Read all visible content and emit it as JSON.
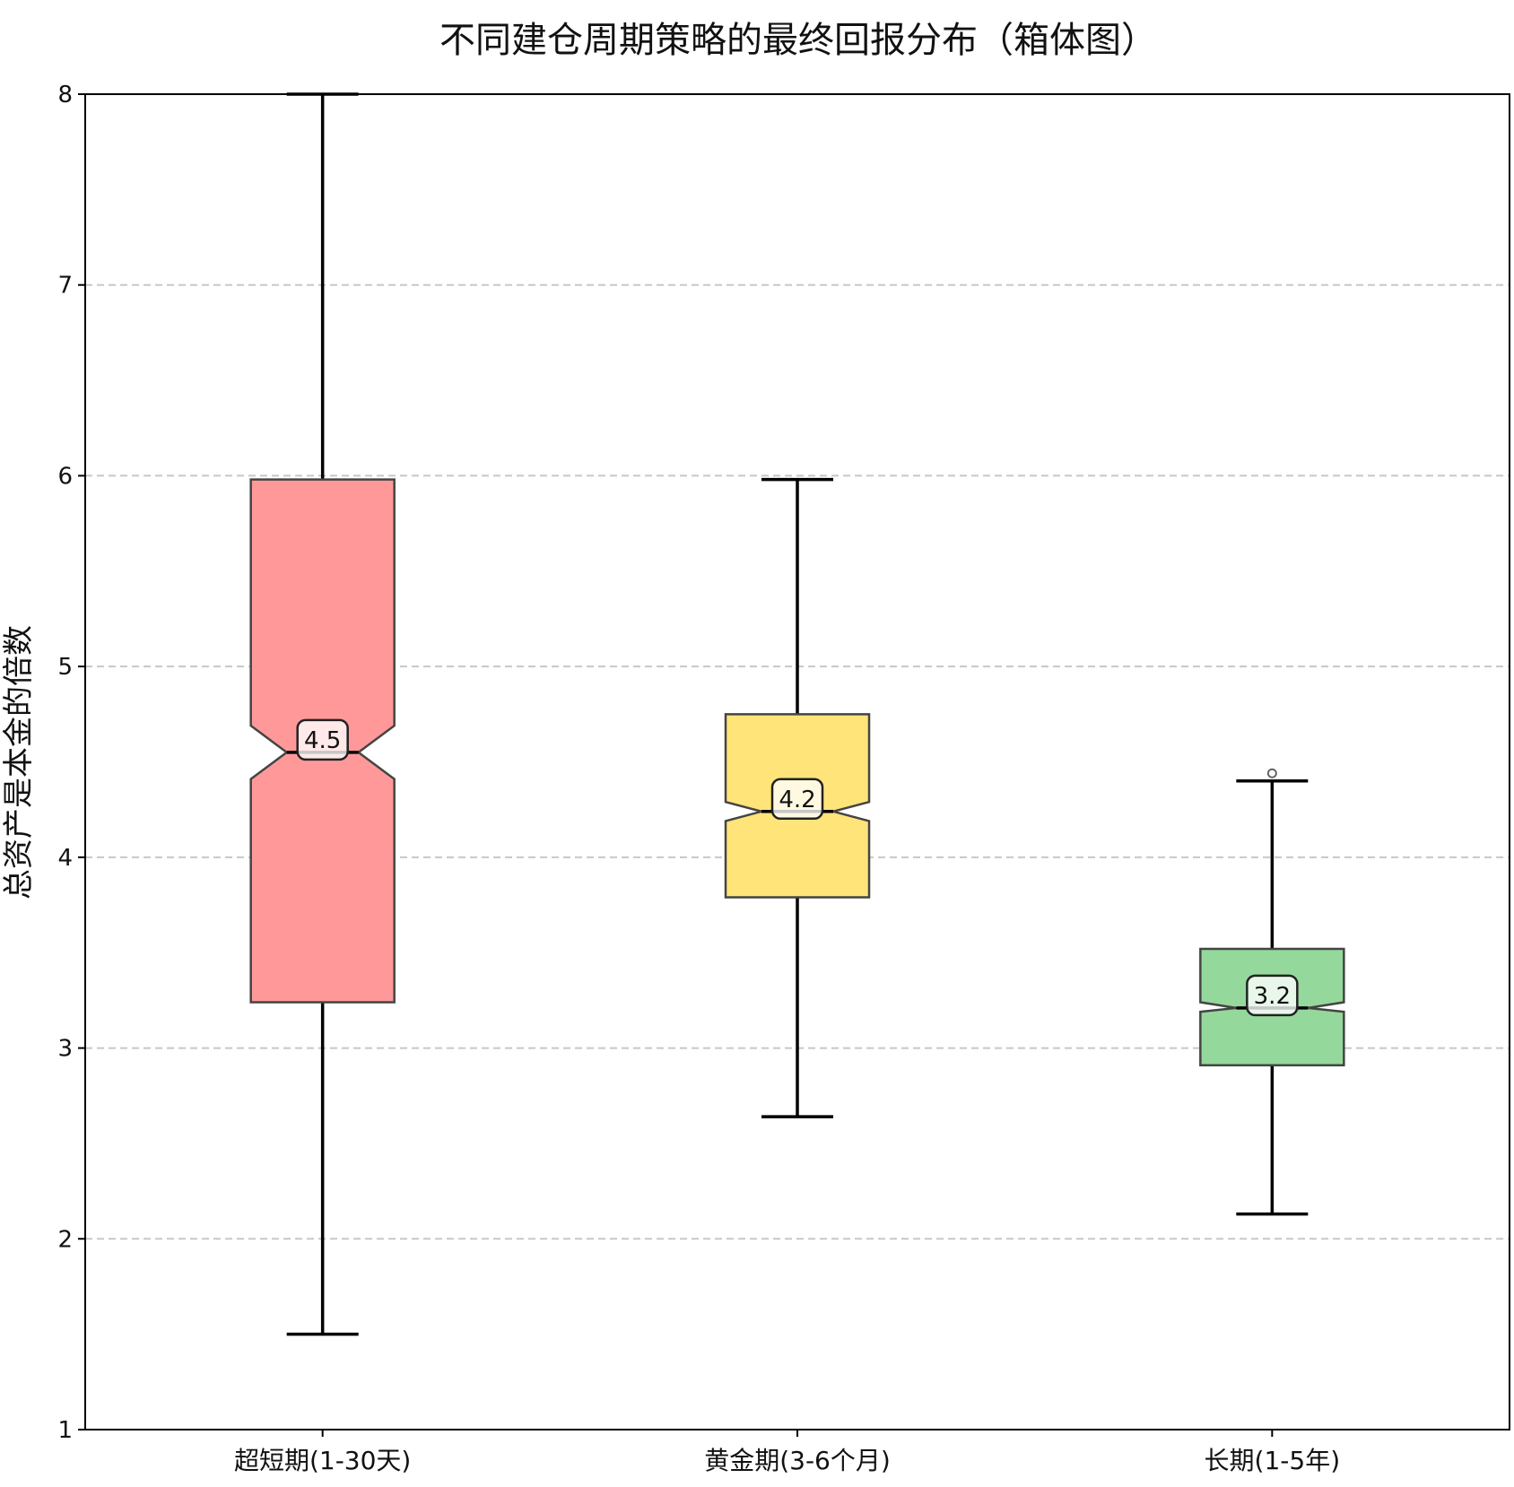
{
  "chart_data": {
    "type": "box",
    "title": "不同建仓周期策略的最终回报分布（箱体图）",
    "xlabel": "",
    "ylabel": "总资产是本金的倍数",
    "ylim": [
      1,
      8
    ],
    "yticks": [
      "1",
      "2",
      "3",
      "4",
      "5",
      "6",
      "7",
      "8"
    ],
    "grid": "horizontal-dashed",
    "notched": true,
    "categories": [
      "超短期(1-30天)",
      "黄金期(3-6个月)",
      "长期(1-5年)"
    ],
    "boxes": [
      {
        "name": "超短期(1-30天)",
        "whisker_low": 1.5,
        "q1": 3.24,
        "median": 4.55,
        "q3": 5.98,
        "whisker_high": 8.0,
        "notch_low": 4.41,
        "notch_high": 4.69,
        "outliers": [],
        "median_label": "4.5",
        "color": "#ff9999"
      },
      {
        "name": "黄金期(3-6个月)",
        "whisker_low": 2.64,
        "q1": 3.79,
        "median": 4.24,
        "q3": 4.75,
        "whisker_high": 5.98,
        "notch_low": 4.19,
        "notch_high": 4.29,
        "outliers": [],
        "median_label": "4.2",
        "color": "#ffe47a"
      },
      {
        "name": "长期(1-5年)",
        "whisker_low": 2.13,
        "q1": 2.91,
        "median": 3.21,
        "q3": 3.52,
        "whisker_high": 4.4,
        "notch_low": 3.19,
        "notch_high": 3.24,
        "outliers": [
          4.44
        ],
        "median_label": "3.2",
        "color": "#95d89c"
      }
    ]
  }
}
